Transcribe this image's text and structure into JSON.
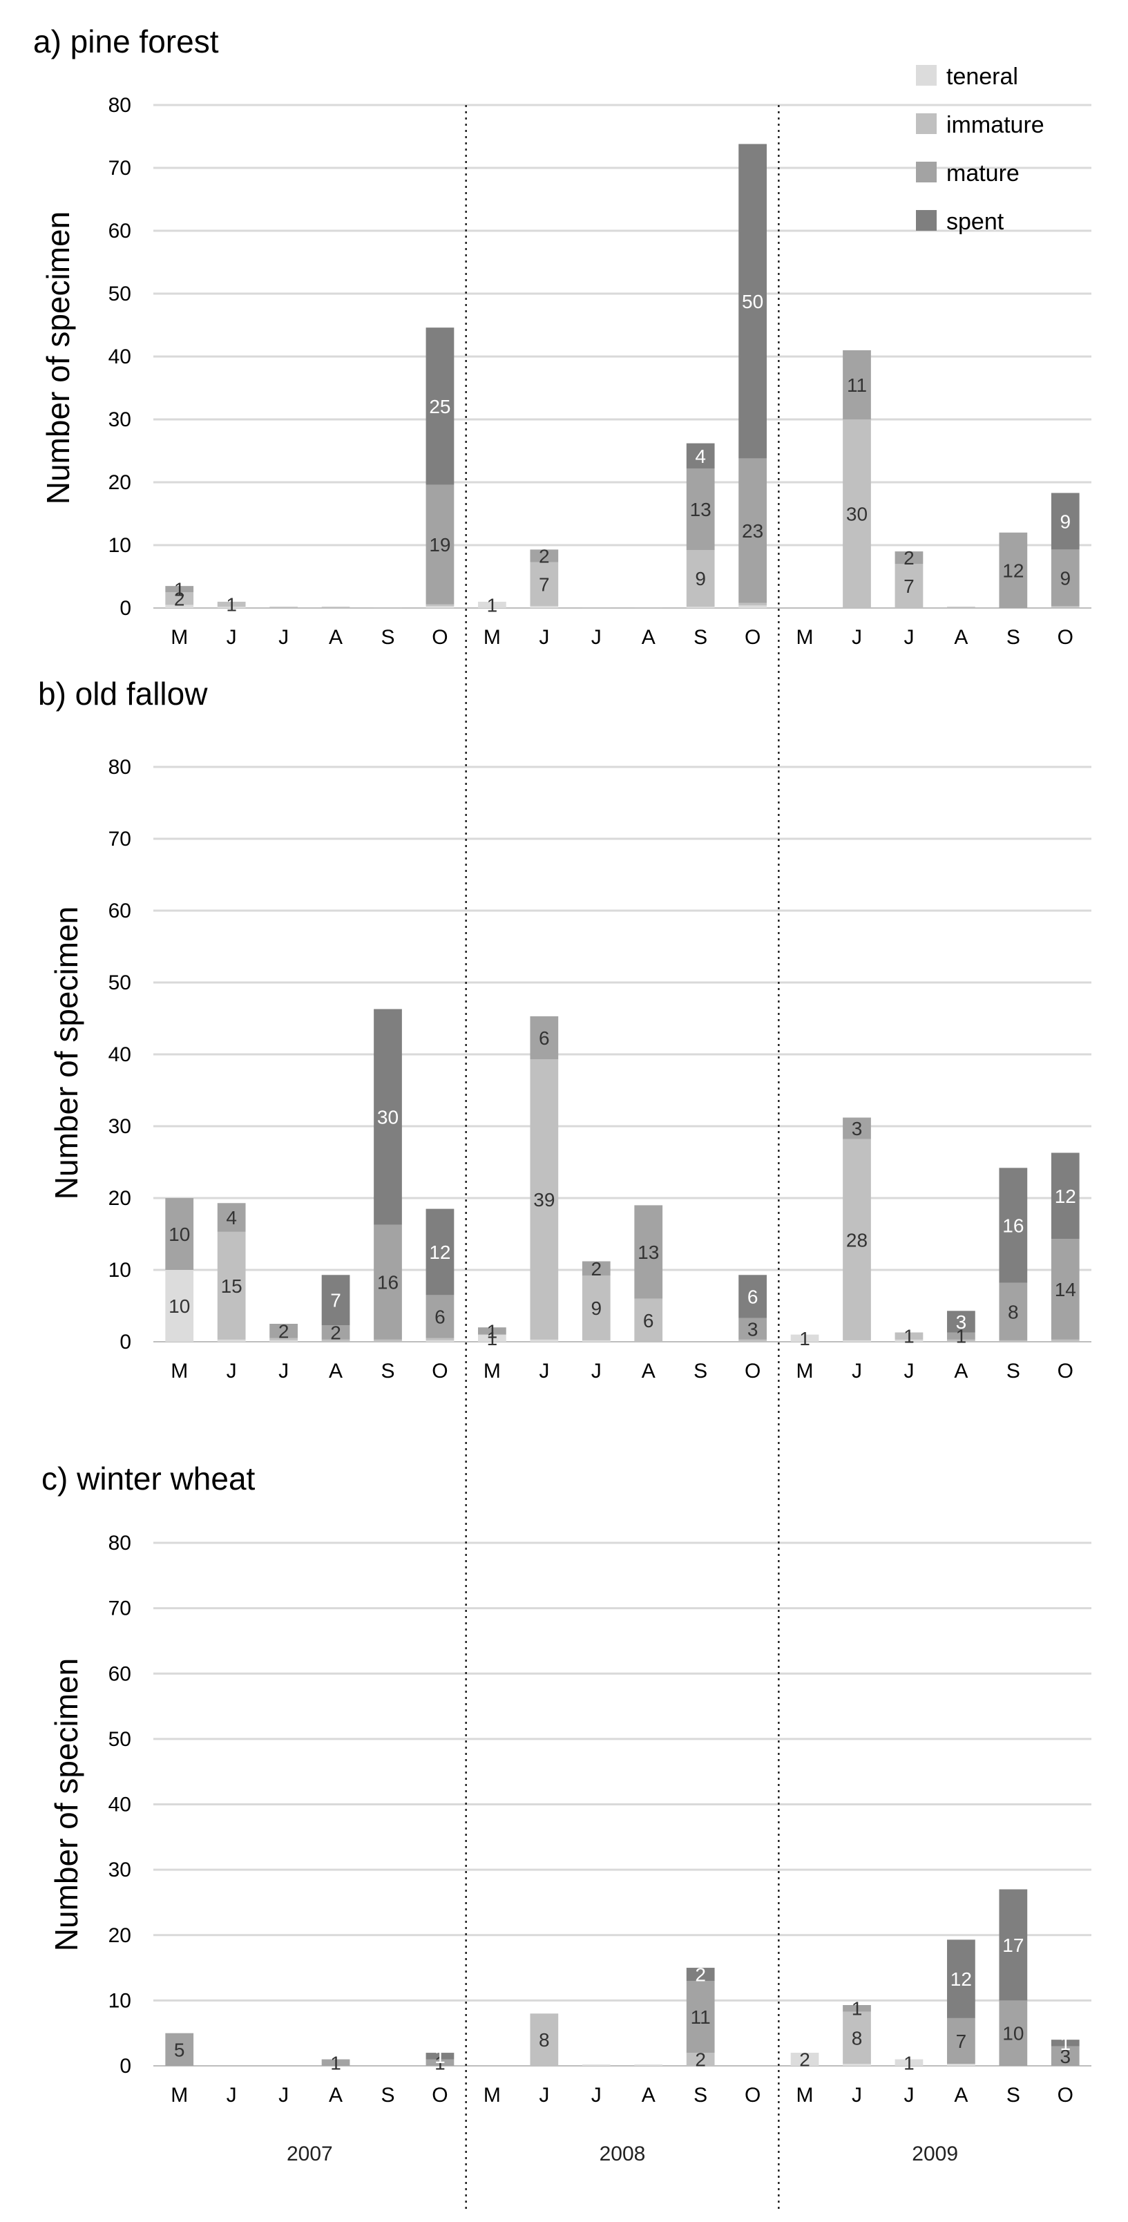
{
  "chart_data": {
    "type": "bar",
    "stacked": true,
    "ylabel": "Number of specimen",
    "ylim": [
      0,
      80
    ],
    "yticks": [
      0,
      10,
      20,
      30,
      40,
      50,
      60,
      70,
      80
    ],
    "categories": [
      "M",
      "J",
      "J",
      "A",
      "S",
      "O",
      "M",
      "J",
      "J",
      "A",
      "S",
      "O",
      "M",
      "J",
      "J",
      "A",
      "S",
      "O"
    ],
    "years": [
      "2007",
      "2008",
      "2009"
    ],
    "legend_position": "top-right",
    "colors": {
      "teneral": "#dcdcdc",
      "immature": "#c0c0c0",
      "mature": "#a3a3a3",
      "spent": "#7f7f7f"
    },
    "legend": [
      {
        "key": "teneral",
        "label": "teneral"
      },
      {
        "key": "immature",
        "label": "immature"
      },
      {
        "key": "mature",
        "label": "mature"
      },
      {
        "key": "spent",
        "label": "spent"
      }
    ],
    "panels": [
      {
        "title": "a) pine forest",
        "series": [
          {
            "name": "teneral",
            "values": [
              0.5,
              0.2,
              0,
              0,
              0,
              0.3,
              1,
              0.3,
              0,
              0,
              0.2,
              0.4,
              0,
              0,
              0,
              0,
              0,
              0
            ]
          },
          {
            "name": "immature",
            "values": [
              2,
              0.8,
              0.2,
              0.2,
              0.1,
              0.3,
              0,
              7,
              0.1,
              0.1,
              9,
              0.4,
              0,
              30,
              7,
              0.2,
              0,
              0.3
            ]
          },
          {
            "name": "mature",
            "values": [
              1,
              0,
              0,
              0,
              0,
              19,
              0,
              2,
              0,
              0,
              13,
              23,
              0,
              11,
              2,
              0,
              12,
              9
            ]
          },
          {
            "name": "spent",
            "values": [
              0,
              0,
              0,
              0,
              0,
              25,
              0,
              0,
              0,
              0,
              4,
              50,
              0,
              0,
              0,
              0,
              0,
              9
            ]
          }
        ],
        "labels": [
          {
            "i": 0,
            "s": "immature",
            "t": "2"
          },
          {
            "i": 0,
            "s": "mature",
            "t": "1"
          },
          {
            "i": 1,
            "s": "immature",
            "t": "1"
          },
          {
            "i": 5,
            "s": "mature",
            "t": "19"
          },
          {
            "i": 5,
            "s": "spent",
            "t": "25"
          },
          {
            "i": 6,
            "s": "teneral",
            "t": "1"
          },
          {
            "i": 7,
            "s": "immature",
            "t": "7"
          },
          {
            "i": 7,
            "s": "mature",
            "t": "2"
          },
          {
            "i": 10,
            "s": "immature",
            "t": "9"
          },
          {
            "i": 10,
            "s": "mature",
            "t": "13"
          },
          {
            "i": 10,
            "s": "spent",
            "t": "4"
          },
          {
            "i": 11,
            "s": "mature",
            "t": "23"
          },
          {
            "i": 11,
            "s": "spent",
            "t": "50"
          },
          {
            "i": 13,
            "s": "immature",
            "t": "30"
          },
          {
            "i": 13,
            "s": "mature",
            "t": "11"
          },
          {
            "i": 14,
            "s": "immature",
            "t": "7"
          },
          {
            "i": 14,
            "s": "mature",
            "t": "2"
          },
          {
            "i": 16,
            "s": "mature",
            "t": "12"
          },
          {
            "i": 17,
            "s": "mature",
            "t": "9"
          },
          {
            "i": 17,
            "s": "spent",
            "t": "9"
          }
        ]
      },
      {
        "title": "b) old fallow",
        "series": [
          {
            "name": "teneral",
            "values": [
              10,
              0.3,
              0.2,
              0,
              0,
              0.2,
              1,
              0.3,
              0.2,
              0,
              0,
              0,
              1,
              0.2,
              0.3,
              0,
              0,
              0
            ]
          },
          {
            "name": "immature",
            "values": [
              0,
              15,
              0.3,
              0.3,
              0.3,
              0.3,
              0,
              39,
              9,
              6,
              0,
              0.3,
              0,
              28,
              1,
              0.3,
              0.2,
              0.3
            ]
          },
          {
            "name": "mature",
            "values": [
              10,
              4,
              2,
              2,
              16,
              6,
              1,
              6,
              2,
              13,
              0,
              3,
              0,
              3,
              0,
              1,
              8,
              14
            ]
          },
          {
            "name": "spent",
            "values": [
              0,
              0,
              0,
              7,
              30,
              12,
              0,
              0,
              0,
              0,
              0,
              6,
              0,
              0,
              0,
              3,
              16,
              12
            ]
          }
        ],
        "labels": [
          {
            "i": 0,
            "s": "teneral",
            "t": "10"
          },
          {
            "i": 0,
            "s": "mature",
            "t": "10"
          },
          {
            "i": 1,
            "s": "immature",
            "t": "15"
          },
          {
            "i": 1,
            "s": "mature",
            "t": "4"
          },
          {
            "i": 2,
            "s": "mature",
            "t": "2"
          },
          {
            "i": 3,
            "s": "mature",
            "t": "2"
          },
          {
            "i": 3,
            "s": "spent",
            "t": "7"
          },
          {
            "i": 4,
            "s": "mature",
            "t": "16"
          },
          {
            "i": 4,
            "s": "spent",
            "t": "30"
          },
          {
            "i": 5,
            "s": "mature",
            "t": "6"
          },
          {
            "i": 5,
            "s": "spent",
            "t": "12"
          },
          {
            "i": 6,
            "s": "teneral",
            "t": "1"
          },
          {
            "i": 6,
            "s": "mature",
            "t": "1"
          },
          {
            "i": 7,
            "s": "immature",
            "t": "39"
          },
          {
            "i": 7,
            "s": "mature",
            "t": "6"
          },
          {
            "i": 8,
            "s": "immature",
            "t": "9"
          },
          {
            "i": 8,
            "s": "mature",
            "t": "2"
          },
          {
            "i": 9,
            "s": "immature",
            "t": "6"
          },
          {
            "i": 9,
            "s": "mature",
            "t": "13"
          },
          {
            "i": 11,
            "s": "mature",
            "t": "3"
          },
          {
            "i": 11,
            "s": "spent",
            "t": "6"
          },
          {
            "i": 12,
            "s": "teneral",
            "t": "1"
          },
          {
            "i": 13,
            "s": "immature",
            "t": "28"
          },
          {
            "i": 13,
            "s": "mature",
            "t": "3"
          },
          {
            "i": 14,
            "s": "immature",
            "t": "1"
          },
          {
            "i": 15,
            "s": "mature",
            "t": "1"
          },
          {
            "i": 15,
            "s": "spent",
            "t": "3"
          },
          {
            "i": 16,
            "s": "mature",
            "t": "8"
          },
          {
            "i": 16,
            "s": "spent",
            "t": "16"
          },
          {
            "i": 17,
            "s": "mature",
            "t": "14"
          },
          {
            "i": 17,
            "s": "spent",
            "t": "12"
          }
        ]
      },
      {
        "title": "c) winter wheat",
        "series": [
          {
            "name": "teneral",
            "values": [
              0,
              0,
              0,
              0,
              0,
              0,
              0,
              0,
              0.2,
              0.2,
              0,
              0,
              2,
              0.3,
              1,
              0.3,
              0,
              0
            ]
          },
          {
            "name": "immature",
            "values": [
              0,
              0,
              0,
              0,
              0,
              0,
              0,
              8,
              0,
              0,
              2,
              0,
              0,
              8,
              0,
              0,
              0,
              0
            ]
          },
          {
            "name": "mature",
            "values": [
              5,
              0,
              0,
              1,
              0,
              1,
              0,
              0,
              0,
              0,
              11,
              0,
              0,
              1,
              0,
              7,
              10,
              3
            ]
          },
          {
            "name": "spent",
            "values": [
              0,
              0,
              0,
              0,
              0,
              1,
              0,
              0,
              0,
              0,
              2,
              0,
              0,
              0,
              0,
              12,
              17,
              1
            ]
          }
        ],
        "labels": [
          {
            "i": 0,
            "s": "mature",
            "t": "5"
          },
          {
            "i": 3,
            "s": "mature",
            "t": "1"
          },
          {
            "i": 5,
            "s": "mature",
            "t": "1"
          },
          {
            "i": 5,
            "s": "spent",
            "t": "1"
          },
          {
            "i": 7,
            "s": "immature",
            "t": "8"
          },
          {
            "i": 10,
            "s": "immature",
            "t": "2"
          },
          {
            "i": 10,
            "s": "mature",
            "t": "11"
          },
          {
            "i": 10,
            "s": "spent",
            "t": "2"
          },
          {
            "i": 12,
            "s": "teneral",
            "t": "2"
          },
          {
            "i": 13,
            "s": "immature",
            "t": "8"
          },
          {
            "i": 13,
            "s": "mature",
            "t": "1"
          },
          {
            "i": 14,
            "s": "teneral",
            "t": "1"
          },
          {
            "i": 15,
            "s": "mature",
            "t": "7"
          },
          {
            "i": 15,
            "s": "spent",
            "t": "12"
          },
          {
            "i": 16,
            "s": "mature",
            "t": "10"
          },
          {
            "i": 16,
            "s": "spent",
            "t": "17"
          },
          {
            "i": 17,
            "s": "mature",
            "t": "3"
          },
          {
            "i": 17,
            "s": "spent",
            "t": "1"
          }
        ]
      }
    ]
  }
}
